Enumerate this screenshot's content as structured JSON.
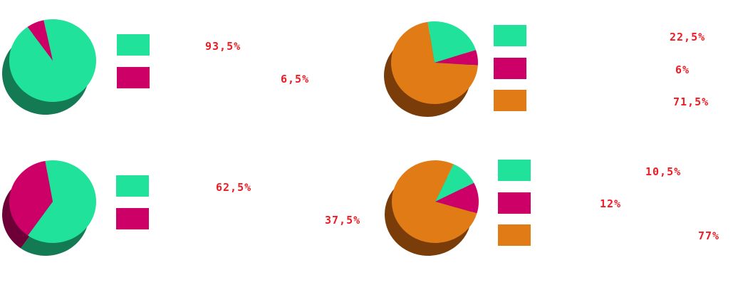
{
  "colors": {
    "teal": "#21e29a",
    "tealDark": "#147a53",
    "magenta": "#cc0066",
    "magentaDark": "#6e0038",
    "orange": "#e07b16",
    "orangeDark": "#7a3d0a",
    "label": "#ee1c24"
  },
  "chart_data": [
    {
      "type": "pie",
      "title": "",
      "legend": "right",
      "slices": [
        {
          "value": 93.5,
          "label": "93,5%",
          "color": "#21e29a"
        },
        {
          "value": 6.5,
          "label": "6,5%",
          "color": "#cc0066"
        }
      ]
    },
    {
      "type": "pie",
      "title": "",
      "legend": "right",
      "slices": [
        {
          "value": 22.5,
          "label": "22,5%",
          "color": "#21e29a"
        },
        {
          "value": 6,
          "label": "6%",
          "color": "#cc0066"
        },
        {
          "value": 71.5,
          "label": "71,5%",
          "color": "#e07b16"
        }
      ]
    },
    {
      "type": "pie",
      "title": "",
      "legend": "right",
      "slices": [
        {
          "value": 62.5,
          "label": "62,5%",
          "color": "#21e29a"
        },
        {
          "value": 37.5,
          "label": "37,5%",
          "color": "#cc0066"
        }
      ]
    },
    {
      "type": "pie",
      "title": "",
      "legend": "right",
      "slices": [
        {
          "value": 10.5,
          "label": "10,5%",
          "color": "#21e29a"
        },
        {
          "value": 12,
          "label": "12%",
          "color": "#cc0066"
        },
        {
          "value": 77,
          "label": "77%",
          "color": "#e07b16"
        }
      ]
    }
  ]
}
